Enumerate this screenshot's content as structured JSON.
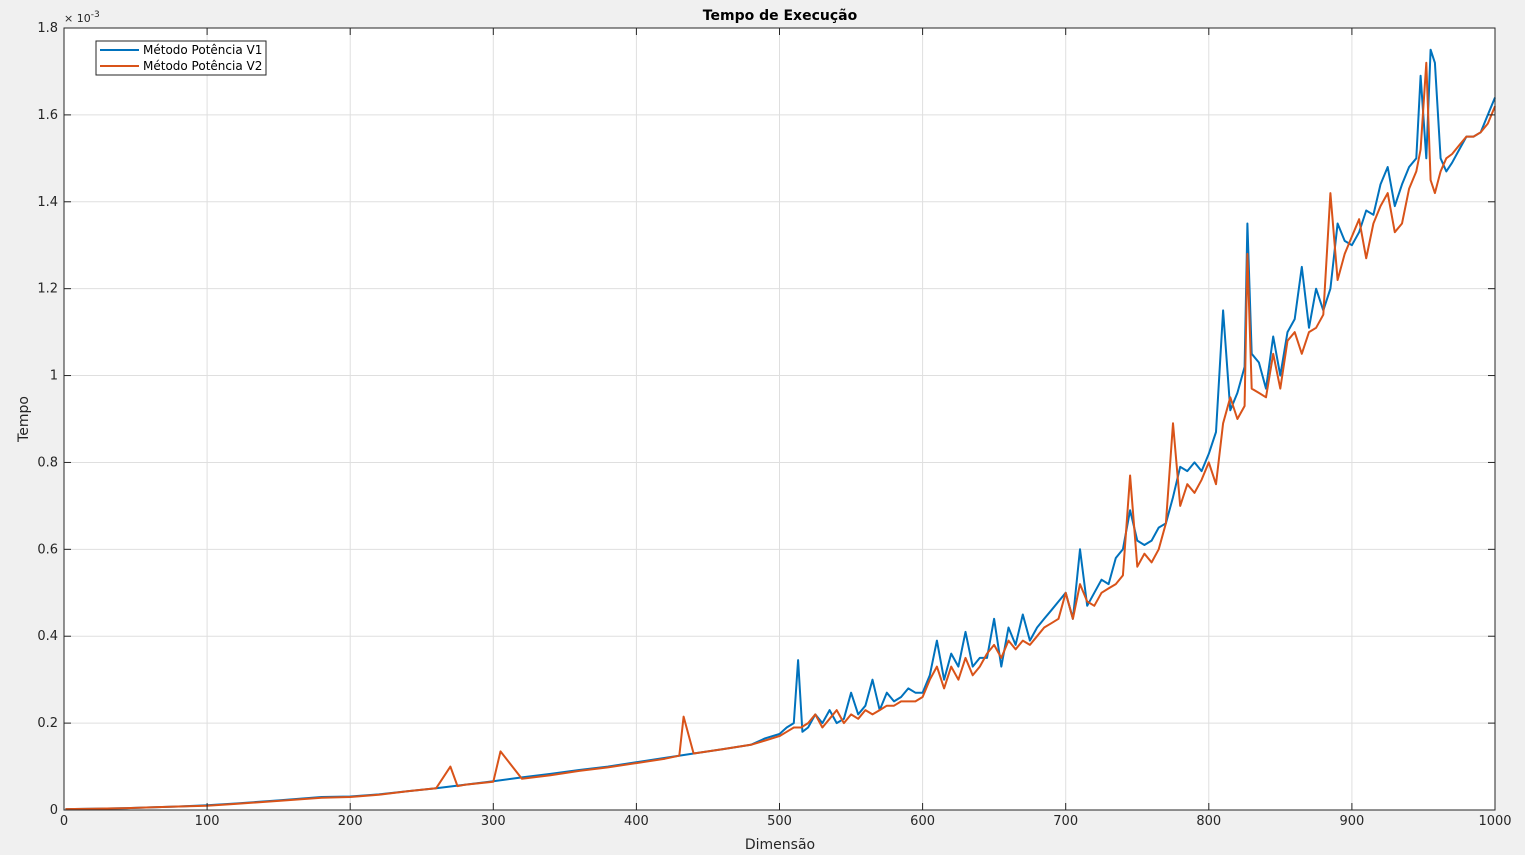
{
  "chart_data": {
    "type": "line",
    "title": "Tempo de Execução",
    "xlabel": "Dimensão",
    "ylabel": "Tempo",
    "y_exponent_base": "× 10",
    "y_exponent_power": "-3",
    "xlim": [
      0,
      1000
    ],
    "ylim": [
      0,
      1.8
    ],
    "y_scale_factor": 0.001,
    "x_ticks": [
      0,
      100,
      200,
      300,
      400,
      500,
      600,
      700,
      800,
      900,
      1000
    ],
    "x_tick_labels": [
      "0",
      "100",
      "200",
      "300",
      "400",
      "500",
      "600",
      "700",
      "800",
      "900",
      "1000"
    ],
    "y_ticks": [
      0,
      0.2,
      0.4,
      0.6,
      0.8,
      1.0,
      1.2,
      1.4,
      1.6,
      1.8
    ],
    "y_tick_labels": [
      "0",
      "0.2",
      "0.4",
      "0.6",
      "0.8",
      "1",
      "1.2",
      "1.4",
      "1.6",
      "1.8"
    ],
    "grid": true,
    "legend_position": "top-left",
    "series": [
      {
        "name": "Método Potência V1",
        "color": "#0072BD",
        "x": [
          1,
          20,
          40,
          60,
          80,
          100,
          120,
          150,
          180,
          200,
          220,
          240,
          260,
          280,
          300,
          320,
          340,
          360,
          380,
          400,
          420,
          440,
          460,
          480,
          490,
          500,
          505,
          510,
          513,
          516,
          520,
          525,
          530,
          535,
          540,
          545,
          550,
          555,
          560,
          565,
          570,
          575,
          580,
          585,
          590,
          595,
          600,
          605,
          610,
          615,
          620,
          625,
          630,
          635,
          640,
          645,
          650,
          655,
          660,
          665,
          670,
          675,
          680,
          685,
          690,
          695,
          700,
          705,
          710,
          715,
          720,
          725,
          730,
          735,
          740,
          745,
          750,
          755,
          760,
          765,
          770,
          775,
          780,
          785,
          790,
          795,
          800,
          805,
          810,
          815,
          820,
          825,
          827,
          830,
          835,
          840,
          845,
          850,
          855,
          860,
          865,
          870,
          875,
          880,
          885,
          890,
          895,
          900,
          905,
          910,
          915,
          920,
          925,
          930,
          935,
          940,
          945,
          948,
          952,
          955,
          958,
          962,
          966,
          970,
          975,
          980,
          985,
          990,
          995,
          1000
        ],
        "y": [
          0.002,
          0.003,
          0.004,
          0.006,
          0.008,
          0.011,
          0.015,
          0.022,
          0.03,
          0.031,
          0.036,
          0.043,
          0.05,
          0.058,
          0.066,
          0.075,
          0.083,
          0.092,
          0.1,
          0.11,
          0.12,
          0.13,
          0.14,
          0.15,
          0.165,
          0.175,
          0.19,
          0.2,
          0.345,
          0.18,
          0.19,
          0.22,
          0.2,
          0.23,
          0.2,
          0.21,
          0.27,
          0.22,
          0.24,
          0.3,
          0.23,
          0.27,
          0.25,
          0.26,
          0.28,
          0.27,
          0.27,
          0.31,
          0.39,
          0.3,
          0.36,
          0.33,
          0.41,
          0.33,
          0.35,
          0.35,
          0.44,
          0.33,
          0.42,
          0.38,
          0.45,
          0.39,
          0.42,
          0.44,
          0.46,
          0.48,
          0.5,
          0.44,
          0.6,
          0.47,
          0.5,
          0.53,
          0.52,
          0.58,
          0.6,
          0.69,
          0.62,
          0.61,
          0.62,
          0.65,
          0.66,
          0.72,
          0.79,
          0.78,
          0.8,
          0.78,
          0.82,
          0.87,
          1.15,
          0.92,
          0.96,
          1.02,
          1.35,
          1.05,
          1.03,
          0.97,
          1.09,
          1.0,
          1.1,
          1.13,
          1.25,
          1.11,
          1.2,
          1.15,
          1.2,
          1.35,
          1.31,
          1.3,
          1.33,
          1.38,
          1.37,
          1.44,
          1.48,
          1.39,
          1.44,
          1.48,
          1.5,
          1.69,
          1.5,
          1.75,
          1.72,
          1.5,
          1.47,
          1.49,
          1.52,
          1.55,
          1.55,
          1.56,
          1.6,
          1.64
        ]
      },
      {
        "name": "Método Potência V2",
        "color": "#D95319",
        "x": [
          1,
          20,
          40,
          60,
          80,
          100,
          120,
          150,
          180,
          200,
          220,
          240,
          260,
          270,
          275,
          280,
          300,
          305,
          320,
          340,
          360,
          380,
          400,
          420,
          430,
          433,
          440,
          460,
          480,
          490,
          500,
          505,
          510,
          515,
          520,
          525,
          530,
          535,
          540,
          545,
          550,
          555,
          560,
          565,
          570,
          575,
          580,
          585,
          590,
          595,
          600,
          605,
          610,
          615,
          620,
          625,
          630,
          635,
          640,
          645,
          650,
          655,
          660,
          665,
          670,
          675,
          680,
          685,
          690,
          695,
          700,
          705,
          710,
          715,
          720,
          725,
          730,
          735,
          740,
          745,
          750,
          755,
          760,
          765,
          770,
          775,
          780,
          785,
          790,
          795,
          800,
          805,
          810,
          815,
          820,
          825,
          827,
          830,
          835,
          840,
          845,
          850,
          855,
          860,
          865,
          870,
          875,
          880,
          885,
          890,
          895,
          900,
          905,
          910,
          915,
          920,
          925,
          930,
          935,
          940,
          945,
          948,
          952,
          955,
          958,
          962,
          966,
          970,
          975,
          980,
          985,
          990,
          995,
          1000
        ],
        "y": [
          0.002,
          0.003,
          0.004,
          0.006,
          0.008,
          0.01,
          0.014,
          0.021,
          0.028,
          0.03,
          0.035,
          0.043,
          0.05,
          0.1,
          0.055,
          0.058,
          0.065,
          0.135,
          0.072,
          0.08,
          0.09,
          0.098,
          0.108,
          0.118,
          0.125,
          0.215,
          0.13,
          0.14,
          0.15,
          0.16,
          0.17,
          0.18,
          0.19,
          0.19,
          0.2,
          0.22,
          0.19,
          0.21,
          0.23,
          0.2,
          0.22,
          0.21,
          0.23,
          0.22,
          0.23,
          0.24,
          0.24,
          0.25,
          0.25,
          0.25,
          0.26,
          0.3,
          0.33,
          0.28,
          0.33,
          0.3,
          0.35,
          0.31,
          0.33,
          0.36,
          0.38,
          0.35,
          0.39,
          0.37,
          0.39,
          0.38,
          0.4,
          0.42,
          0.43,
          0.44,
          0.5,
          0.44,
          0.52,
          0.48,
          0.47,
          0.5,
          0.51,
          0.52,
          0.54,
          0.77,
          0.56,
          0.59,
          0.57,
          0.6,
          0.66,
          0.89,
          0.7,
          0.75,
          0.73,
          0.76,
          0.8,
          0.75,
          0.89,
          0.95,
          0.9,
          0.93,
          1.28,
          0.97,
          0.96,
          0.95,
          1.05,
          0.97,
          1.08,
          1.1,
          1.05,
          1.1,
          1.11,
          1.14,
          1.42,
          1.22,
          1.28,
          1.32,
          1.36,
          1.27,
          1.35,
          1.39,
          1.42,
          1.33,
          1.35,
          1.43,
          1.47,
          1.52,
          1.72,
          1.45,
          1.42,
          1.47,
          1.5,
          1.51,
          1.53,
          1.55,
          1.55,
          1.56,
          1.58,
          1.62
        ]
      }
    ]
  }
}
